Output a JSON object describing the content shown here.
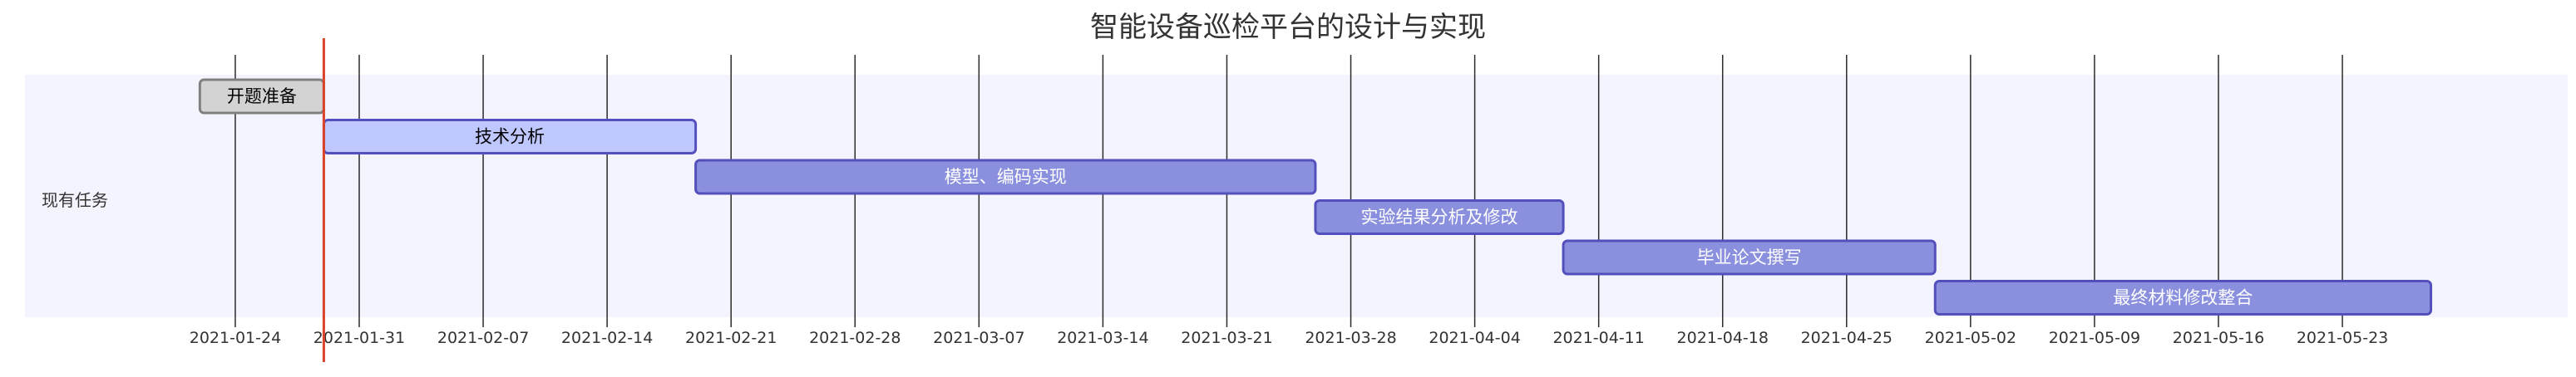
{
  "chart_data": {
    "type": "gantt",
    "title": "智能设备巡检平台的设计与实现",
    "section": "现有任务",
    "today": "2021-01-29",
    "x_range": [
      "2021-01-14",
      "2021-06-02"
    ],
    "ticks": [
      "2021-01-24",
      "2021-01-31",
      "2021-02-07",
      "2021-02-14",
      "2021-02-21",
      "2021-02-28",
      "2021-03-07",
      "2021-03-14",
      "2021-03-21",
      "2021-03-28",
      "2021-04-04",
      "2021-04-11",
      "2021-04-18",
      "2021-04-25",
      "2021-05-02",
      "2021-05-09",
      "2021-05-16",
      "2021-05-23"
    ],
    "tasks": [
      {
        "name": "开题准备",
        "start": "2021-01-22",
        "end": "2021-01-29",
        "status": "done"
      },
      {
        "name": "技术分析",
        "start": "2021-01-29",
        "end": "2021-02-19",
        "status": "active"
      },
      {
        "name": "模型、编码实现",
        "start": "2021-02-19",
        "end": "2021-03-26",
        "status": "planned"
      },
      {
        "name": "实验结果分析及修改",
        "start": "2021-03-26",
        "end": "2021-04-09",
        "status": "planned"
      },
      {
        "name": "毕业论文撰写",
        "start": "2021-04-09",
        "end": "2021-04-30",
        "status": "planned"
      },
      {
        "name": "最终材料修改整合",
        "start": "2021-04-30",
        "end": "2021-05-28",
        "status": "planned"
      }
    ],
    "colors": {
      "section_band": "#f4f4fe",
      "grid_line": "#2b2b2b",
      "today_line": "#d9442b",
      "done_fill": "#d3d3d3",
      "done_stroke": "#808080",
      "active_fill": "#bfc7ff",
      "active_stroke": "#534fbc",
      "planned_fill": "#8a90dd",
      "planned_stroke": "#534fbc",
      "dark_text": "#000000",
      "light_text": "#ffffff"
    }
  }
}
